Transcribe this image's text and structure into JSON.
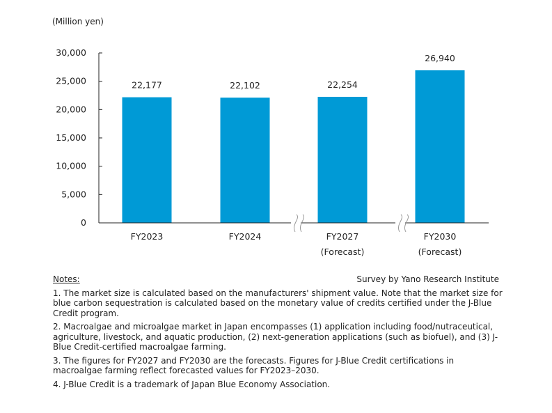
{
  "chart_data": {
    "type": "bar",
    "title": "",
    "unit_label": "(Million yen)",
    "categories": [
      "FY2023",
      "FY2024",
      "FY2027",
      "FY2030"
    ],
    "category_sublabels": [
      "",
      "",
      "(Forecast)",
      "(Forecast)"
    ],
    "values": [
      22177,
      22102,
      22254,
      26940
    ],
    "data_labels": [
      "22,177",
      "22,102",
      "22,254",
      "26,940"
    ],
    "ylim": [
      0,
      30000
    ],
    "yticks": [
      0,
      5000,
      10000,
      15000,
      20000,
      25000,
      30000
    ],
    "ytick_labels": [
      "0",
      "5,000",
      "10,000",
      "15,000",
      "20,000",
      "25,000",
      "30,000"
    ],
    "axis_breaks_between": [
      [
        "FY2024",
        "FY2027"
      ],
      [
        "FY2027",
        "FY2030"
      ]
    ],
    "grid": false,
    "bar_color": "#009ad6"
  },
  "source": "Survey by Yano Research Institute",
  "notes": {
    "title": "Notes:",
    "items": [
      "1. The market size is calculated based on the manufacturers' shipment value. Note that the market size for blue carbon sequestration is calculated based on the monetary value of credits certified under the J-Blue Credit program.",
      "2. Macroalgae and microalgae market in Japan encompasses (1) application including food/nutraceutical, agriculture, livestock, and aquatic production, (2) next-generation applications (such as biofuel), and (3) J-Blue Credit-certified macroalgae farming.",
      "3. The figures for FY2027 and FY2030 are the forecasts. Figures for J-Blue Credit certifications in macroalgae farming reflect forecasted values for FY2023–2030.",
      "4. J-Blue Credit is a trademark of Japan Blue Economy Association."
    ]
  }
}
